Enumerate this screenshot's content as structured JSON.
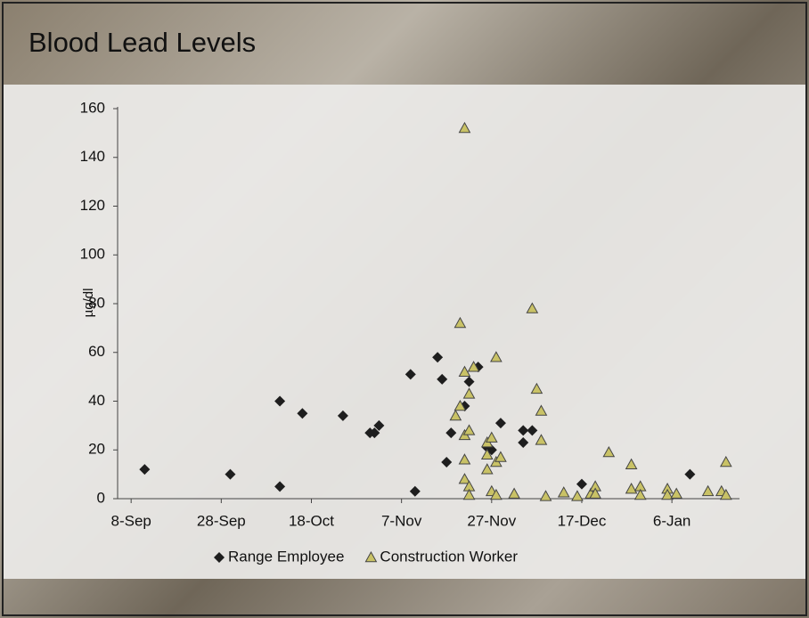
{
  "chart_data": {
    "type": "scatter",
    "title": "Blood Lead Levels",
    "y_label": "µg/dl",
    "xlim": [
      248,
      386
    ],
    "ylim": [
      0,
      160
    ],
    "xticks": [
      {
        "value": 251,
        "label": "8-Sep"
      },
      {
        "value": 271,
        "label": "28-Sep"
      },
      {
        "value": 291,
        "label": "18-Oct"
      },
      {
        "value": 311,
        "label": "7-Nov"
      },
      {
        "value": 331,
        "label": "27-Nov"
      },
      {
        "value": 351,
        "label": "17-Dec"
      },
      {
        "value": 371,
        "label": "6-Jan"
      }
    ],
    "yticks": [
      0,
      20,
      40,
      60,
      80,
      100,
      120,
      140,
      160
    ],
    "legend": "bottom",
    "series": [
      {
        "name": "Range Employee",
        "marker": "diamond",
        "color": "#1e1e1e",
        "x": [
          254,
          273,
          284,
          284,
          289,
          298,
          304,
          305,
          306,
          313,
          314,
          319,
          320,
          322,
          321,
          325,
          328,
          326,
          330,
          331,
          333,
          338,
          338,
          340,
          351,
          375
        ],
        "values": [
          12,
          10,
          40,
          5,
          35,
          34,
          27,
          27,
          30,
          51,
          3,
          58,
          49,
          27,
          15,
          38,
          54,
          48,
          21,
          20,
          31,
          28,
          23,
          28,
          6,
          10
        ]
      },
      {
        "name": "Construction Worker",
        "marker": "triangle",
        "color": "#c9c266",
        "x": [
          325,
          324,
          340,
          332,
          325,
          327,
          326,
          323,
          324,
          325,
          326,
          325,
          325,
          326,
          326,
          330,
          331,
          330,
          332,
          333,
          330,
          331,
          332,
          336,
          341,
          342,
          342,
          343,
          347,
          350,
          353,
          354,
          354,
          357,
          362,
          362,
          364,
          364,
          370,
          370,
          372,
          379,
          382,
          383,
          383
        ],
        "values": [
          152,
          72,
          78,
          58,
          52,
          54,
          43,
          34,
          38,
          26,
          28,
          16,
          8,
          5,
          1.5,
          23,
          25,
          18,
          15,
          17,
          12,
          3,
          1.5,
          2,
          45,
          36,
          24,
          1,
          2.5,
          1,
          2,
          5,
          2,
          19,
          14,
          4,
          5,
          1.5,
          4,
          1.5,
          2,
          3,
          3,
          15,
          1.5
        ]
      }
    ]
  }
}
